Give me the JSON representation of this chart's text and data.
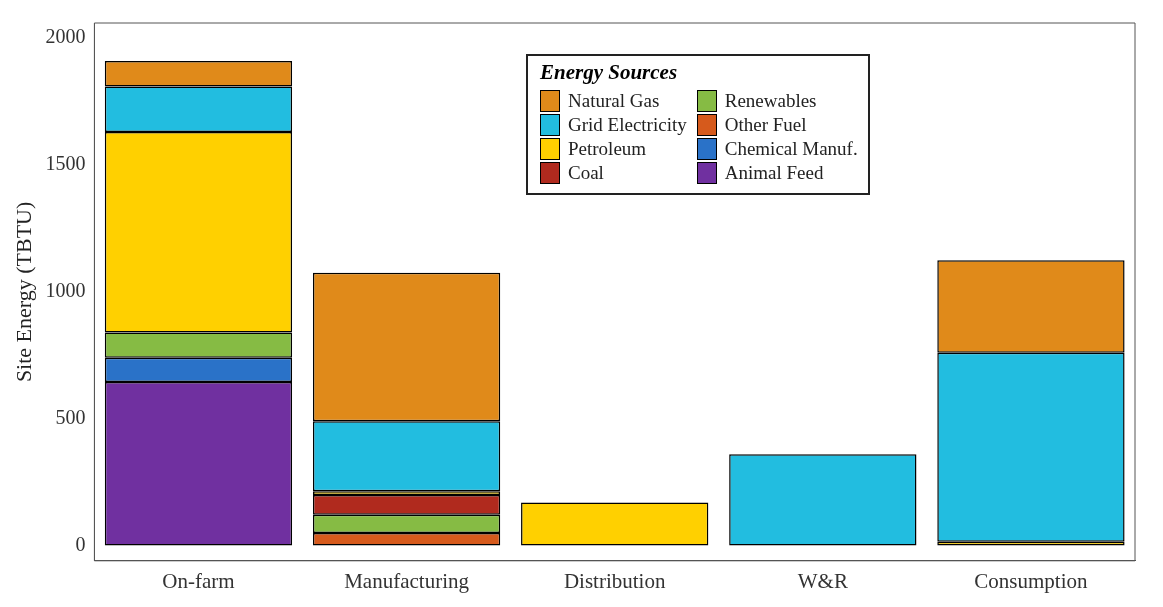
{
  "chart_data": {
    "type": "bar",
    "stacked": true,
    "ylabel": "Site Energy (TBTU)",
    "legend_title": "Energy Sources",
    "legend": "top right",
    "grid": false,
    "categories": [
      "On-farm",
      "Manufacturing",
      "Distribution",
      "W&R",
      "Consumption"
    ],
    "ylim": [
      -60,
      2060
    ],
    "yticks": [
      0,
      500,
      1000,
      1500,
      2000
    ],
    "series": [
      {
        "name": "Animal Feed",
        "color": "#7030a0",
        "values": [
          645,
          null,
          null,
          null,
          null
        ]
      },
      {
        "name": "Chemical Manuf.",
        "color": "#2a72c8",
        "values": [
          95,
          null,
          null,
          null,
          null
        ]
      },
      {
        "name": "Other Fuel",
        "color": "#d65a1c",
        "values": [
          null,
          50,
          null,
          null,
          null
        ]
      },
      {
        "name": "Renewables",
        "color": "#86bb44",
        "values": [
          100,
          72,
          null,
          null,
          null
        ]
      },
      {
        "name": "Coal",
        "color": "#b02a1e",
        "values": [
          null,
          77,
          null,
          null,
          null
        ]
      },
      {
        "name": "Petroleum",
        "color": "#ffd000",
        "values": [
          790,
          15,
          170,
          null,
          15
        ]
      },
      {
        "name": "Grid Electricity",
        "color": "#22bde0",
        "values": [
          180,
          276,
          null,
          360,
          745
        ]
      },
      {
        "name": "Natural Gas",
        "color": "#e08a1a",
        "values": [
          100,
          585,
          null,
          null,
          365
        ]
      }
    ]
  }
}
